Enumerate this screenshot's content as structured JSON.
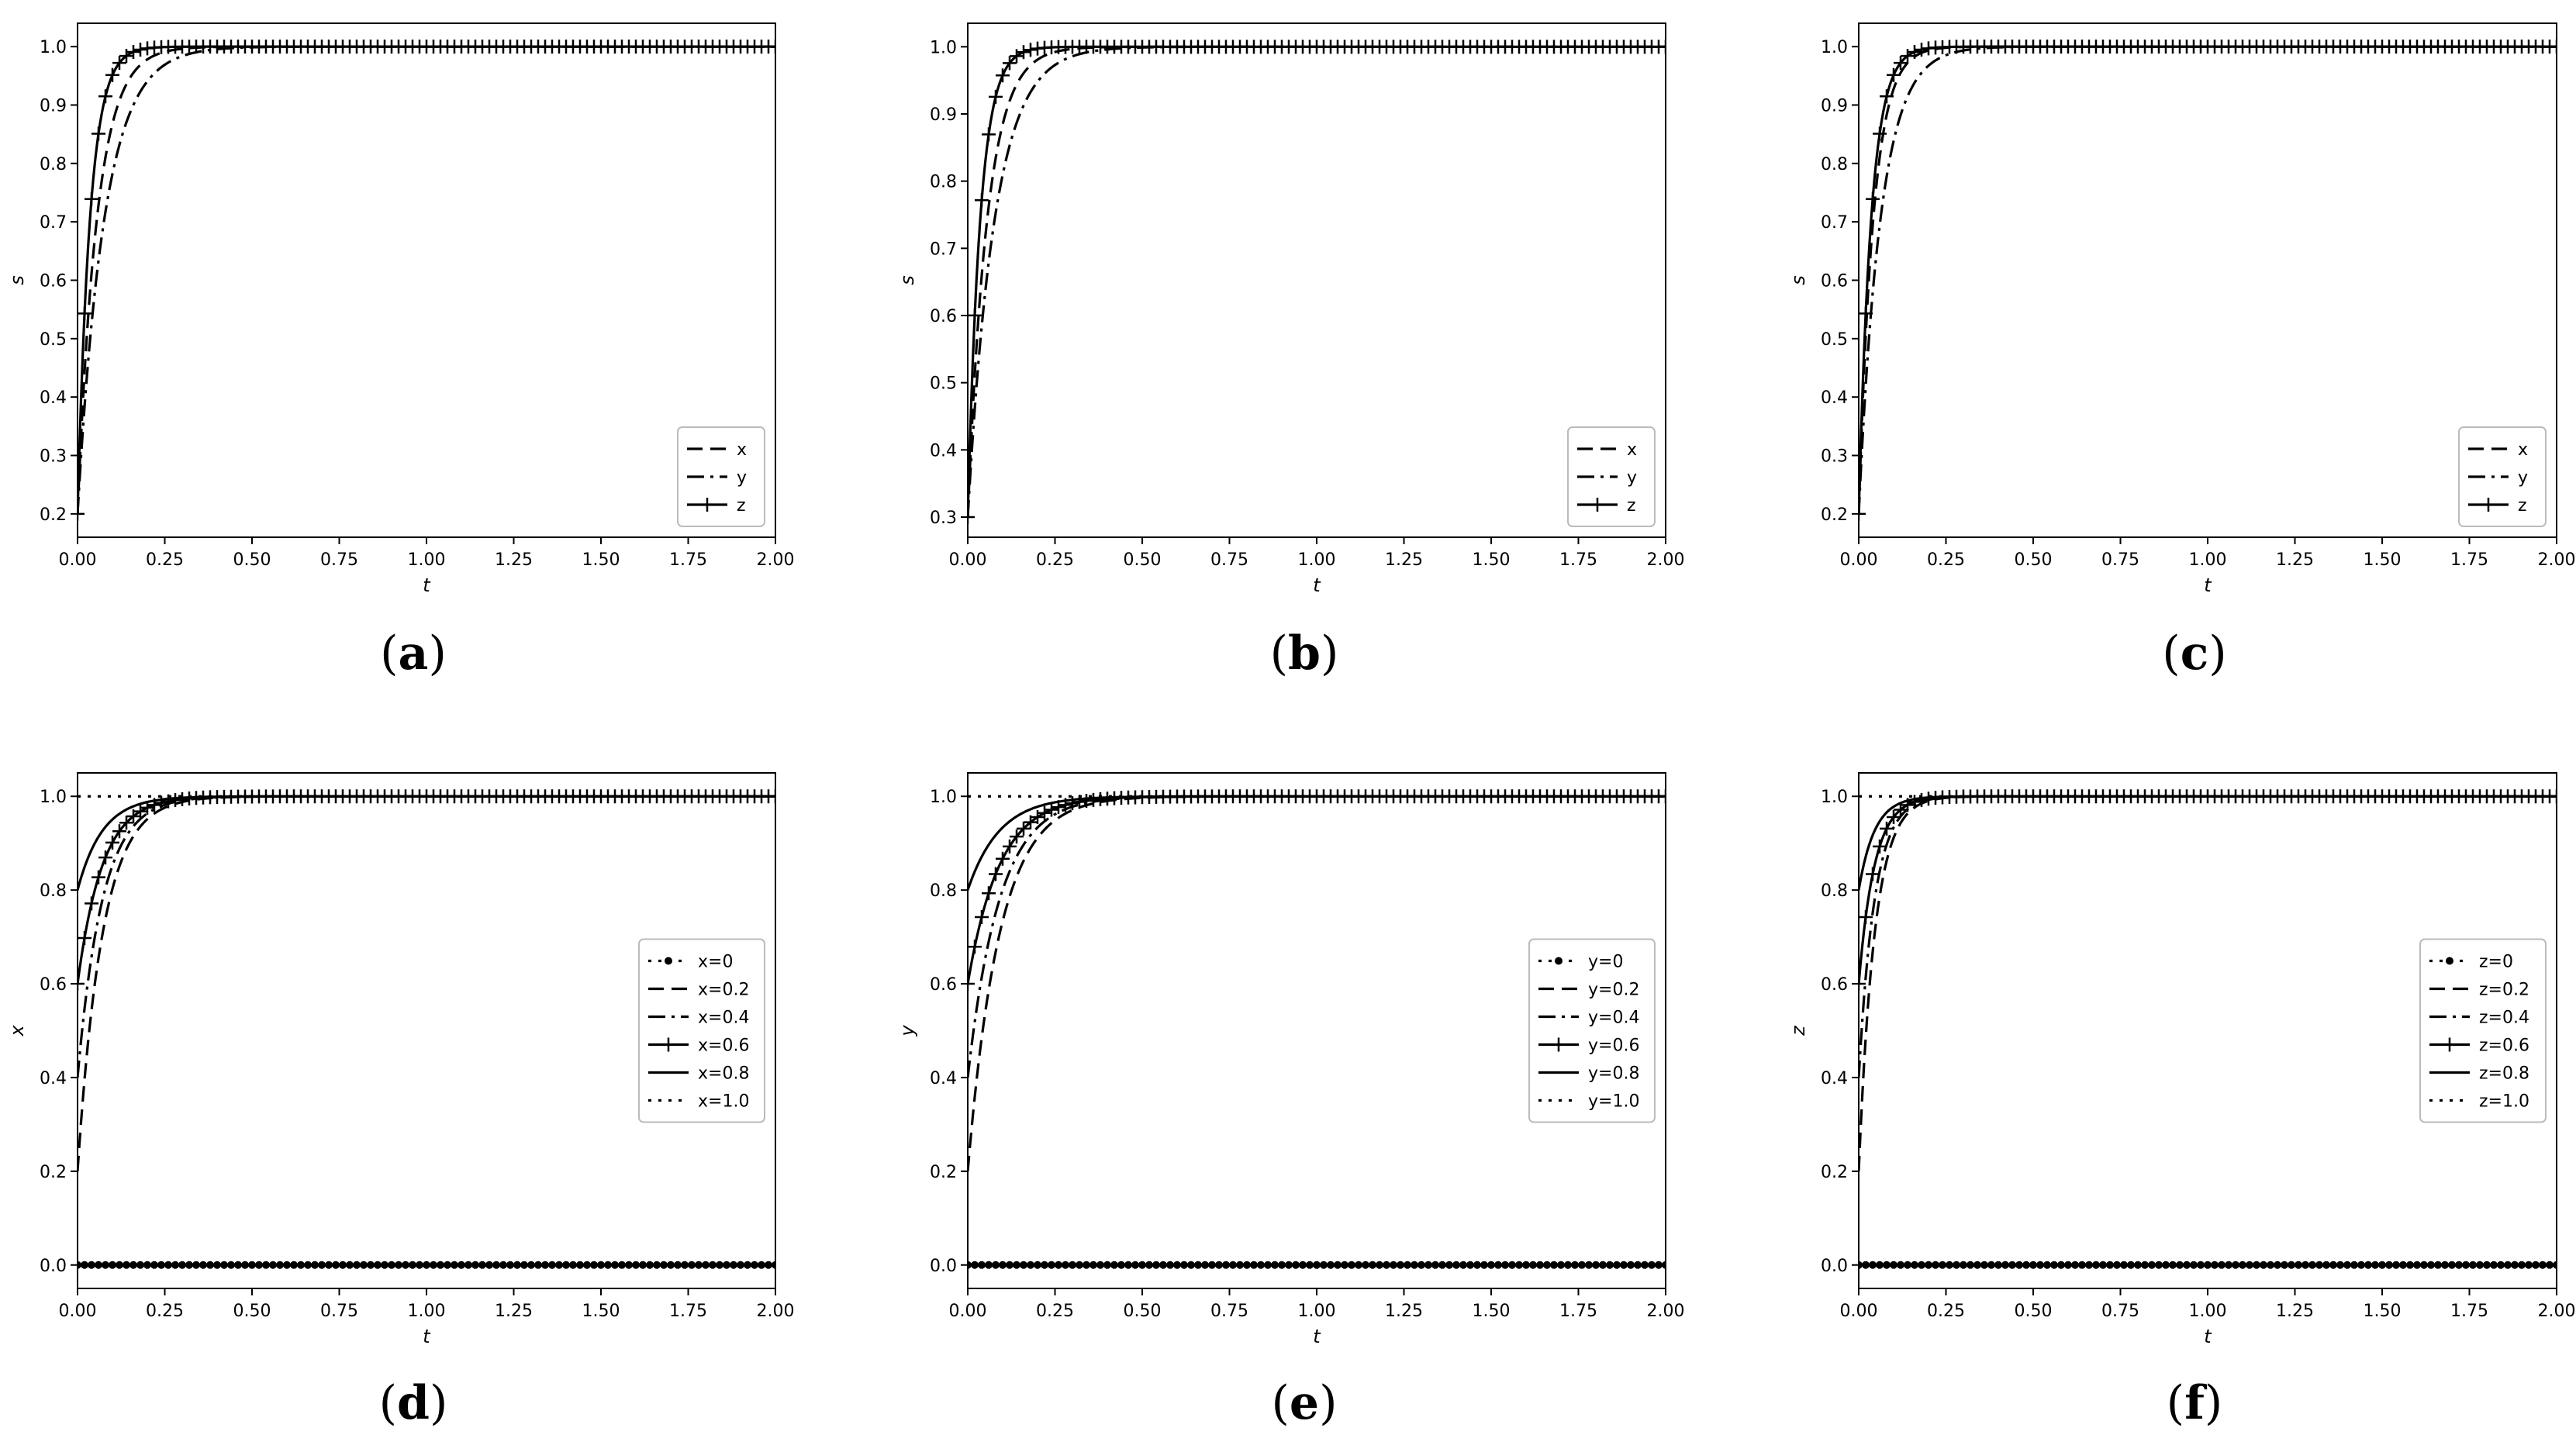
{
  "figure": {
    "labels": [
      "a",
      "b",
      "c",
      "d",
      "e",
      "f"
    ]
  },
  "chart_data": [
    {
      "id": "a",
      "type": "line",
      "xlabel": "t",
      "ylabel": "s",
      "xlim": [
        0,
        2.0
      ],
      "ylim": [
        0.16,
        1.04
      ],
      "xticks": [
        "0.00",
        "0.25",
        "0.50",
        "0.75",
        "1.00",
        "1.25",
        "1.50",
        "1.75",
        "2.00"
      ],
      "yticks": [
        "0.2",
        "0.3",
        "0.4",
        "0.5",
        "0.6",
        "0.7",
        "0.8",
        "0.9",
        "1.0"
      ],
      "legend_position": "lower right",
      "series": [
        {
          "name": "x",
          "style": "dashed",
          "y0": 0.2,
          "k": 18
        },
        {
          "name": "y",
          "style": "dashdot",
          "y0": 0.2,
          "k": 13
        },
        {
          "name": "z",
          "style": "solid-plus",
          "y0": 0.2,
          "k": 28
        }
      ]
    },
    {
      "id": "b",
      "type": "line",
      "xlabel": "t",
      "ylabel": "s",
      "xlim": [
        0,
        2.0
      ],
      "ylim": [
        0.27,
        1.035
      ],
      "xticks": [
        "0.00",
        "0.25",
        "0.50",
        "0.75",
        "1.00",
        "1.25",
        "1.50",
        "1.75",
        "2.00"
      ],
      "yticks": [
        "0.3",
        "0.4",
        "0.5",
        "0.6",
        "0.7",
        "0.8",
        "0.9",
        "1.0"
      ],
      "legend_position": "lower right",
      "series": [
        {
          "name": "x",
          "style": "dashed",
          "y0": 0.3,
          "k": 18
        },
        {
          "name": "y",
          "style": "dashdot",
          "y0": 0.3,
          "k": 13
        },
        {
          "name": "z",
          "style": "solid-plus",
          "y0": 0.3,
          "k": 28
        }
      ]
    },
    {
      "id": "c",
      "type": "line",
      "xlabel": "t",
      "ylabel": "s",
      "xlim": [
        0,
        2.0
      ],
      "ylim": [
        0.16,
        1.04
      ],
      "xticks": [
        "0.00",
        "0.25",
        "0.50",
        "0.75",
        "1.00",
        "1.25",
        "1.50",
        "1.75",
        "2.00"
      ],
      "yticks": [
        "0.2",
        "0.3",
        "0.4",
        "0.5",
        "0.6",
        "0.7",
        "0.8",
        "0.9",
        "1.0"
      ],
      "legend_position": "lower right",
      "series": [
        {
          "name": "x",
          "style": "dashed",
          "y0": 0.2,
          "k": 24
        },
        {
          "name": "y",
          "style": "dashdot",
          "y0": 0.2,
          "k": 16
        },
        {
          "name": "z",
          "style": "solid-plus",
          "y0": 0.2,
          "k": 28
        }
      ]
    },
    {
      "id": "d",
      "type": "line",
      "xlabel": "t",
      "ylabel": "x",
      "xlim": [
        0,
        2.0
      ],
      "ylim": [
        -0.05,
        1.05
      ],
      "xticks": [
        "0.00",
        "0.25",
        "0.50",
        "0.75",
        "1.00",
        "1.25",
        "1.50",
        "1.75",
        "2.00"
      ],
      "yticks": [
        "0.0",
        "0.2",
        "0.4",
        "0.6",
        "0.8",
        "1.0"
      ],
      "legend_position": "center right",
      "series": [
        {
          "name": "x=0",
          "style": "dotted-dot",
          "y0": 0.0,
          "k": 0
        },
        {
          "name": "x=0.2",
          "style": "dashed",
          "y0": 0.2,
          "k": 14
        },
        {
          "name": "x=0.4",
          "style": "dashdot",
          "y0": 0.4,
          "k": 14
        },
        {
          "name": "x=0.6",
          "style": "solid-plus",
          "y0": 0.6,
          "k": 14
        },
        {
          "name": "x=0.8",
          "style": "solid",
          "y0": 0.8,
          "k": 14
        },
        {
          "name": "x=1.0",
          "style": "dotted",
          "y0": 1.0,
          "k": 14
        }
      ]
    },
    {
      "id": "e",
      "type": "line",
      "xlabel": "t",
      "ylabel": "y",
      "xlim": [
        0,
        2.0
      ],
      "ylim": [
        -0.05,
        1.05
      ],
      "xticks": [
        "0.00",
        "0.25",
        "0.50",
        "0.75",
        "1.00",
        "1.25",
        "1.50",
        "1.75",
        "2.00"
      ],
      "yticks": [
        "0.0",
        "0.2",
        "0.4",
        "0.6",
        "0.8",
        "1.0"
      ],
      "legend_position": "center right",
      "series": [
        {
          "name": "y=0",
          "style": "dotted-dot",
          "y0": 0.0,
          "k": 0
        },
        {
          "name": "y=0.2",
          "style": "dashed",
          "y0": 0.2,
          "k": 11
        },
        {
          "name": "y=0.4",
          "style": "dashdot",
          "y0": 0.4,
          "k": 11
        },
        {
          "name": "y=0.6",
          "style": "solid-plus",
          "y0": 0.6,
          "k": 11
        },
        {
          "name": "y=0.8",
          "style": "solid",
          "y0": 0.8,
          "k": 11
        },
        {
          "name": "y=1.0",
          "style": "dotted",
          "y0": 1.0,
          "k": 11
        }
      ]
    },
    {
      "id": "f",
      "type": "line",
      "xlabel": "t",
      "ylabel": "z",
      "xlim": [
        0,
        2.0
      ],
      "ylim": [
        -0.05,
        1.05
      ],
      "xticks": [
        "0.00",
        "0.25",
        "0.50",
        "0.75",
        "1.00",
        "1.25",
        "1.50",
        "1.75",
        "2.00"
      ],
      "yticks": [
        "0.0",
        "0.2",
        "0.4",
        "0.6",
        "0.8",
        "1.0"
      ],
      "legend_position": "center right",
      "series": [
        {
          "name": "z=0",
          "style": "dotted-dot",
          "y0": 0.0,
          "k": 0
        },
        {
          "name": "z=0.2",
          "style": "dashed",
          "y0": 0.2,
          "k": 22
        },
        {
          "name": "z=0.4",
          "style": "dashdot",
          "y0": 0.4,
          "k": 22
        },
        {
          "name": "z=0.6",
          "style": "solid-plus",
          "y0": 0.6,
          "k": 22
        },
        {
          "name": "z=0.8",
          "style": "solid",
          "y0": 0.8,
          "k": 22
        },
        {
          "name": "z=1.0",
          "style": "dotted",
          "y0": 1.0,
          "k": 22
        }
      ]
    }
  ]
}
